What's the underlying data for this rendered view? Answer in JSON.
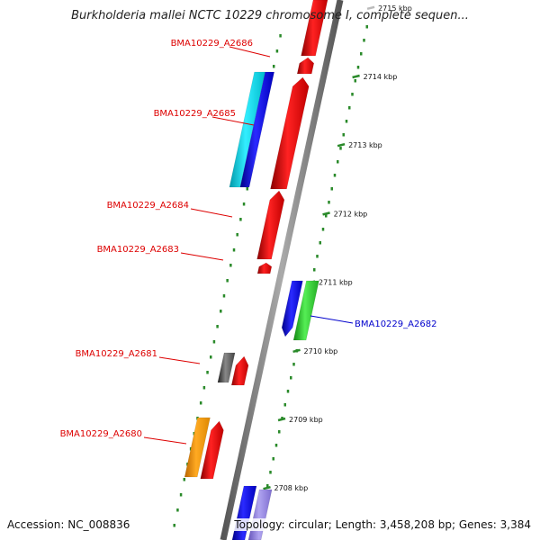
{
  "title": "Burkholderia mallei NCTC 10229 chromosome I, complete sequen...",
  "footer": {
    "accession": "Accession: NC_008836",
    "summary": "Topology: circular; Length: 3,458,208 bp; Genes: 3,384"
  },
  "colors": {
    "forward_label": "#dd0000",
    "reverse_label": "#0000cc",
    "backbone": "#7a7a7a",
    "tick": "#2a8a2a",
    "red": "#ee1111",
    "blue": "#1111dd",
    "cyan": "#11ddee",
    "green": "#33cc33",
    "gray": "#555555",
    "orange": "#ff9900",
    "lavender": "#9a8ae0"
  },
  "scale_ticks": [
    {
      "label": "2715 kbp",
      "kbp": 2715,
      "faded": true
    },
    {
      "label": "2714 kbp",
      "kbp": 2714,
      "faded": false
    },
    {
      "label": "2713 kbp",
      "kbp": 2713,
      "faded": false
    },
    {
      "label": "2712 kbp",
      "kbp": 2712,
      "faded": false
    },
    {
      "label": "2711 kbp",
      "kbp": 2711,
      "faded": false
    },
    {
      "label": "2710 kbp",
      "kbp": 2710,
      "faded": false
    },
    {
      "label": "2709 kbp",
      "kbp": 2709,
      "faded": false
    },
    {
      "label": "2708 kbp",
      "kbp": 2708,
      "faded": false
    }
  ],
  "genes": [
    {
      "label": "BMA10229_A2686",
      "strand": "+",
      "color": "red"
    },
    {
      "label": "BMA10229_A2685",
      "strand": "+",
      "color": "red"
    },
    {
      "label": "BMA10229_A2684",
      "strand": "+",
      "color": "red"
    },
    {
      "label": "BMA10229_A2683",
      "strand": "+",
      "color": "red"
    },
    {
      "label": "BMA10229_A2682",
      "strand": "-",
      "color": "blue"
    },
    {
      "label": "BMA10229_A2681",
      "strand": "+",
      "color": "red"
    },
    {
      "label": "BMA10229_A2680",
      "strand": "+",
      "color": "red"
    }
  ]
}
